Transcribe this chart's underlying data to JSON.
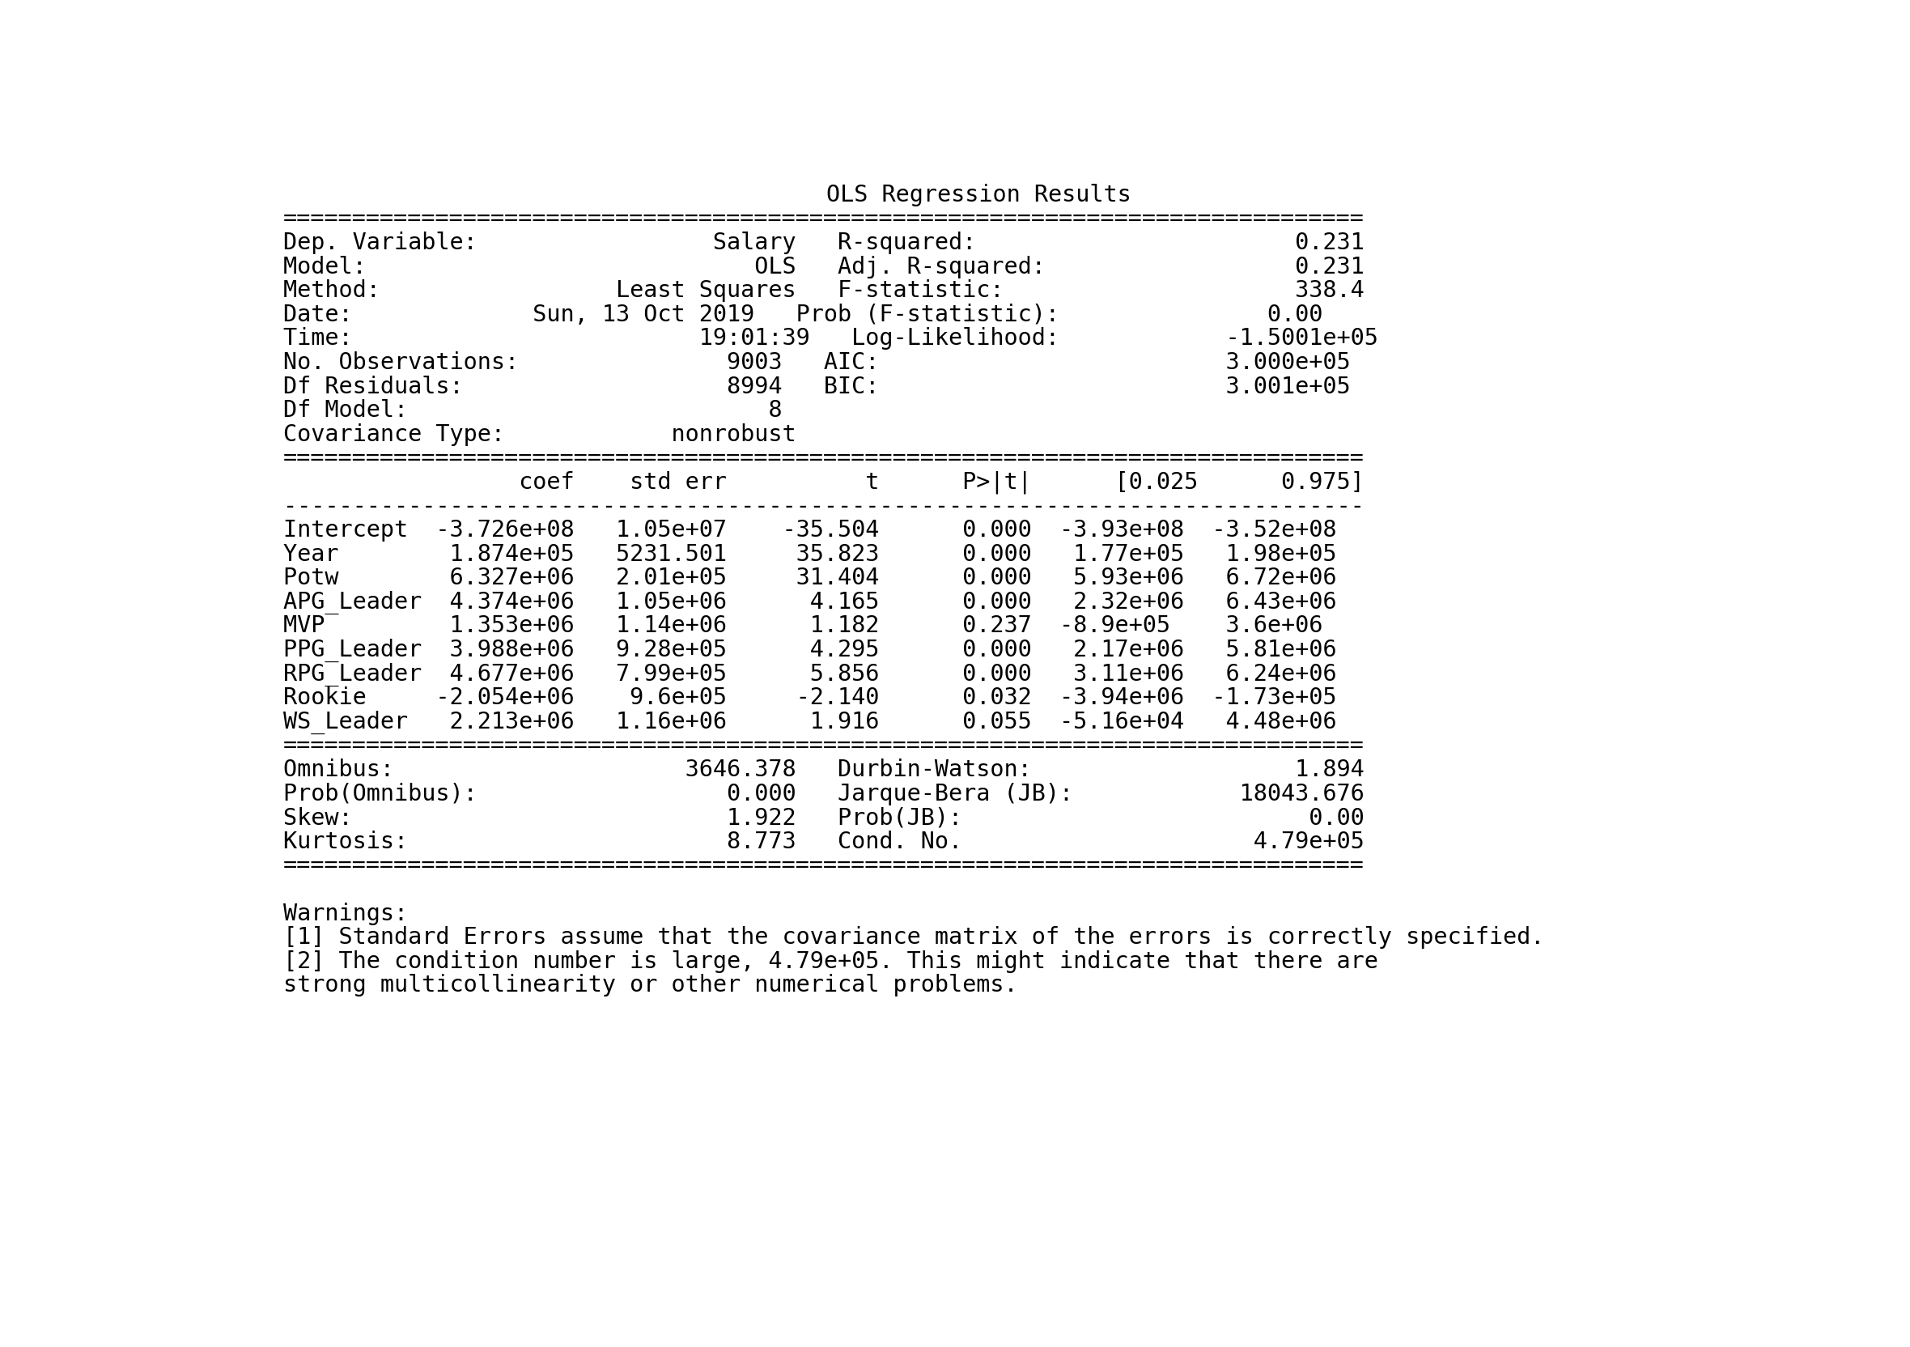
{
  "background_color": "#ffffff",
  "text_color": "#000000",
  "font_size": 20.5,
  "title_font_size": 20.5,
  "lines": [
    {
      "text": "OLS Regression Results",
      "align": "center"
    },
    {
      "text": "==============================================================================",
      "align": "left"
    },
    {
      "text": "Dep. Variable:                 Salary   R-squared:                       0.231",
      "align": "left"
    },
    {
      "text": "Model:                            OLS   Adj. R-squared:                  0.231",
      "align": "left"
    },
    {
      "text": "Method:                 Least Squares   F-statistic:                     338.4",
      "align": "left"
    },
    {
      "text": "Date:             Sun, 13 Oct 2019   Prob (F-statistic):               0.00",
      "align": "left"
    },
    {
      "text": "Time:                         19:01:39   Log-Likelihood:            -1.5001e+05",
      "align": "left"
    },
    {
      "text": "No. Observations:               9003   AIC:                         3.000e+05",
      "align": "left"
    },
    {
      "text": "Df Residuals:                   8994   BIC:                         3.001e+05",
      "align": "left"
    },
    {
      "text": "Df Model:                          8",
      "align": "left"
    },
    {
      "text": "Covariance Type:            nonrobust",
      "align": "left"
    },
    {
      "text": "==============================================================================",
      "align": "left"
    },
    {
      "text": "                 coef    std err          t      P>|t|      [0.025      0.975]",
      "align": "left"
    },
    {
      "text": "------------------------------------------------------------------------------",
      "align": "left"
    },
    {
      "text": "Intercept  -3.726e+08   1.05e+07    -35.504      0.000  -3.93e+08  -3.52e+08",
      "align": "left"
    },
    {
      "text": "Year        1.874e+05   5231.501     35.823      0.000   1.77e+05   1.98e+05",
      "align": "left"
    },
    {
      "text": "Potw        6.327e+06   2.01e+05     31.404      0.000   5.93e+06   6.72e+06",
      "align": "left"
    },
    {
      "text": "APG_Leader  4.374e+06   1.05e+06      4.165      0.000   2.32e+06   6.43e+06",
      "align": "left"
    },
    {
      "text": "MVP         1.353e+06   1.14e+06      1.182      0.237  -8.9e+05    3.6e+06",
      "align": "left"
    },
    {
      "text": "PPG_Leader  3.988e+06   9.28e+05      4.295      0.000   2.17e+06   5.81e+06",
      "align": "left"
    },
    {
      "text": "RPG_Leader  4.677e+06   7.99e+05      5.856      0.000   3.11e+06   6.24e+06",
      "align": "left"
    },
    {
      "text": "Rookie     -2.054e+06    9.6e+05     -2.140      0.032  -3.94e+06  -1.73e+05",
      "align": "left"
    },
    {
      "text": "WS_Leader   2.213e+06   1.16e+06      1.916      0.055  -5.16e+04   4.48e+06",
      "align": "left"
    },
    {
      "text": "==============================================================================",
      "align": "left"
    },
    {
      "text": "Omnibus:                     3646.378   Durbin-Watson:                   1.894",
      "align": "left"
    },
    {
      "text": "Prob(Omnibus):                  0.000   Jarque-Bera (JB):            18043.676",
      "align": "left"
    },
    {
      "text": "Skew:                           1.922   Prob(JB):                         0.00",
      "align": "left"
    },
    {
      "text": "Kurtosis:                       8.773   Cond. No.                     4.79e+05",
      "align": "left"
    },
    {
      "text": "==============================================================================",
      "align": "left"
    },
    {
      "text": "",
      "align": "left"
    },
    {
      "text": "Warnings:",
      "align": "left"
    },
    {
      "text": "[1] Standard Errors assume that the covariance matrix of the errors is correctly specified.",
      "align": "left"
    },
    {
      "text": "[2] The condition number is large, 4.79e+05. This might indicate that there are",
      "align": "left"
    },
    {
      "text": "strong multicollinearity or other numerical problems.",
      "align": "left"
    }
  ]
}
